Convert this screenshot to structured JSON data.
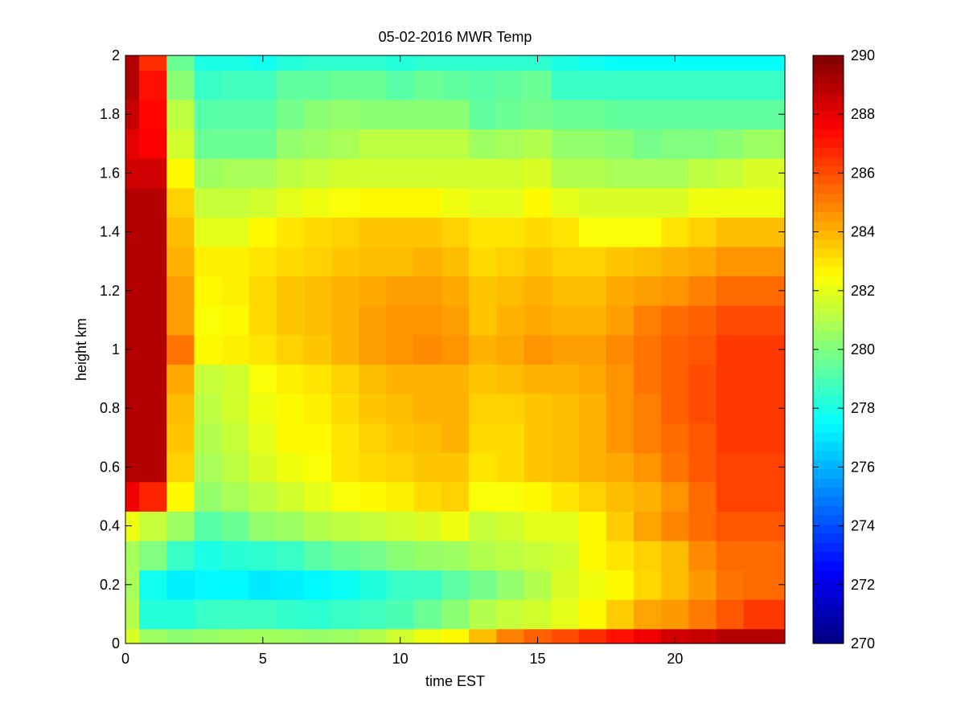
{
  "chart_data": {
    "type": "heatmap",
    "title": "05-02-2016 MWR Temp",
    "xlabel": "time EST",
    "ylabel": "height km",
    "xlim": [
      0,
      24
    ],
    "ylim": [
      0,
      2
    ],
    "x_ticks": [
      0,
      5,
      10,
      15,
      20
    ],
    "y_ticks": [
      0,
      0.2,
      0.4,
      0.6,
      0.8,
      1,
      1.2,
      1.4,
      1.6,
      1.8,
      2
    ],
    "colormap": "jet",
    "colorbar": {
      "clim": [
        270,
        290
      ],
      "ticks": [
        270,
        272,
        274,
        276,
        278,
        280,
        282,
        284,
        286,
        288,
        290
      ]
    },
    "times": [
      0,
      1,
      2,
      3,
      4,
      5,
      6,
      7,
      8,
      9,
      10,
      11,
      12,
      13,
      14,
      15,
      16,
      17,
      18,
      19,
      20,
      21,
      22,
      23,
      24
    ],
    "heights": [
      0,
      0.1,
      0.2,
      0.3,
      0.4,
      0.5,
      0.6,
      0.7,
      0.8,
      0.9,
      1.0,
      1.1,
      1.2,
      1.3,
      1.4,
      1.5,
      1.6,
      1.7,
      1.8,
      1.9,
      2.0
    ],
    "values": [
      [
        281.8,
        280.6,
        280.3,
        280.5,
        280.6,
        280.7,
        280.6,
        280.5,
        280.6,
        281.0,
        281.6,
        282.2,
        282.6,
        283.8,
        285.0,
        285.6,
        286.0,
        286.6,
        287.2,
        287.8,
        288.4,
        288.6,
        289.0,
        289.0,
        289.0
      ],
      [
        281.0,
        278.2,
        278.2,
        278.6,
        278.7,
        278.7,
        278.5,
        278.4,
        278.6,
        278.8,
        279.0,
        279.6,
        280.2,
        281.0,
        281.4,
        281.6,
        282.0,
        282.6,
        283.5,
        284.3,
        284.5,
        285.1,
        285.8,
        286.4,
        286.4
      ],
      [
        280.8,
        277.8,
        277.2,
        277.4,
        277.4,
        277.1,
        277.2,
        277.4,
        277.7,
        278.1,
        278.6,
        278.7,
        279.3,
        279.8,
        280.4,
        281.0,
        281.8,
        282.2,
        282.6,
        283.3,
        283.8,
        284.5,
        285.2,
        285.4,
        285.4
      ],
      [
        280.8,
        280.0,
        278.6,
        278.0,
        278.3,
        278.4,
        278.6,
        279.2,
        279.6,
        279.8,
        280.2,
        280.5,
        280.6,
        281.0,
        281.2,
        281.4,
        281.6,
        282.6,
        283.0,
        283.4,
        283.8,
        284.8,
        285.4,
        285.4,
        285.4
      ],
      [
        282.2,
        281.4,
        280.6,
        279.2,
        279.6,
        280.4,
        280.6,
        281.0,
        281.2,
        281.4,
        281.6,
        281.8,
        282.2,
        281.4,
        281.6,
        282.0,
        282.0,
        282.6,
        283.5,
        284.3,
        284.9,
        285.4,
        285.8,
        285.8,
        285.8
      ],
      [
        287.8,
        286.8,
        282.6,
        280.4,
        280.8,
        281.2,
        281.6,
        282.0,
        282.4,
        282.6,
        282.8,
        283.2,
        283.4,
        282.4,
        282.4,
        282.6,
        283.0,
        283.4,
        283.8,
        284.0,
        284.6,
        285.4,
        286.2,
        286.2,
        286.2
      ],
      [
        289.0,
        289.0,
        283.4,
        280.8,
        281.2,
        281.8,
        282.2,
        282.4,
        283.0,
        283.2,
        283.4,
        283.6,
        283.6,
        283.0,
        283.2,
        283.6,
        283.8,
        284.0,
        284.2,
        284.6,
        285.2,
        285.8,
        286.2,
        286.2,
        286.2
      ],
      [
        289.0,
        289.0,
        283.6,
        281.0,
        281.4,
        282.0,
        282.6,
        282.6,
        283.0,
        283.4,
        283.6,
        283.8,
        284.0,
        283.2,
        283.2,
        283.6,
        283.8,
        284.0,
        284.6,
        285.0,
        285.4,
        285.8,
        286.4,
        286.4,
        286.4
      ],
      [
        289.0,
        289.0,
        283.8,
        281.2,
        281.6,
        282.2,
        282.6,
        282.8,
        283.2,
        283.6,
        283.8,
        284.0,
        284.0,
        283.4,
        283.4,
        283.6,
        283.8,
        284.0,
        284.6,
        285.0,
        285.6,
        286.0,
        286.4,
        286.4,
        286.4
      ],
      [
        289.0,
        289.0,
        284.2,
        281.4,
        281.6,
        282.4,
        282.8,
        283.0,
        283.4,
        283.8,
        284.0,
        284.0,
        284.0,
        283.6,
        283.8,
        284.0,
        284.0,
        284.2,
        284.6,
        285.2,
        285.6,
        286.0,
        286.4,
        286.4,
        286.4
      ],
      [
        289.0,
        289.0,
        285.2,
        282.6,
        282.8,
        283.0,
        283.4,
        283.6,
        284.0,
        284.4,
        284.6,
        284.8,
        284.6,
        284.0,
        284.2,
        284.6,
        284.4,
        284.4,
        284.8,
        285.2,
        285.6,
        285.8,
        286.4,
        286.4,
        286.4
      ],
      [
        289.0,
        289.0,
        284.4,
        282.4,
        282.6,
        283.2,
        283.6,
        283.8,
        284.0,
        284.4,
        284.6,
        284.6,
        284.4,
        283.6,
        284.0,
        284.2,
        284.0,
        284.0,
        284.4,
        285.0,
        285.4,
        285.6,
        286.0,
        286.0,
        286.0
      ],
      [
        289.0,
        289.0,
        284.4,
        282.6,
        282.8,
        283.2,
        283.6,
        283.8,
        284.0,
        284.2,
        284.4,
        284.4,
        284.2,
        283.6,
        283.8,
        284.0,
        283.8,
        283.8,
        284.2,
        284.4,
        284.6,
        285.0,
        285.4,
        285.4,
        285.4
      ],
      [
        289.0,
        289.0,
        284.0,
        282.8,
        282.8,
        283.0,
        283.2,
        283.4,
        283.6,
        283.8,
        283.8,
        284.0,
        283.8,
        283.2,
        283.4,
        283.6,
        283.4,
        283.4,
        283.6,
        283.8,
        284.0,
        284.2,
        284.6,
        284.6,
        284.6
      ],
      [
        289.0,
        289.0,
        283.8,
        282.0,
        282.0,
        282.6,
        283.0,
        283.2,
        283.4,
        283.6,
        283.6,
        283.6,
        283.4,
        283.0,
        283.0,
        283.2,
        283.0,
        282.4,
        282.4,
        282.4,
        283.0,
        283.4,
        283.8,
        283.8,
        283.8
      ],
      [
        289.0,
        289.0,
        283.4,
        281.4,
        281.4,
        281.6,
        282.0,
        282.2,
        282.4,
        282.6,
        282.6,
        282.6,
        282.2,
        282.0,
        282.0,
        282.6,
        282.0,
        281.8,
        281.8,
        281.8,
        281.8,
        282.2,
        282.2,
        282.2,
        282.2
      ],
      [
        288.4,
        288.4,
        282.6,
        280.6,
        280.8,
        280.8,
        281.2,
        281.4,
        281.6,
        281.6,
        281.6,
        281.6,
        281.6,
        281.6,
        281.6,
        281.8,
        281.0,
        281.0,
        280.8,
        280.8,
        280.8,
        281.2,
        281.4,
        281.8,
        281.8
      ],
      [
        288.0,
        287.6,
        281.6,
        279.6,
        279.6,
        279.6,
        280.4,
        280.6,
        280.8,
        281.2,
        281.2,
        281.2,
        281.2,
        280.6,
        280.8,
        281.0,
        280.4,
        280.4,
        280.2,
        279.8,
        280.0,
        280.0,
        280.2,
        280.6,
        280.6
      ],
      [
        288.6,
        287.4,
        281.2,
        279.2,
        279.2,
        279.2,
        279.8,
        280.2,
        280.4,
        280.2,
        280.2,
        280.2,
        280.2,
        279.4,
        279.6,
        279.8,
        279.6,
        279.6,
        279.4,
        279.4,
        279.4,
        279.4,
        279.4,
        279.4,
        279.4
      ],
      [
        289.0,
        287.2,
        280.2,
        278.6,
        278.8,
        278.8,
        279.4,
        279.4,
        279.6,
        279.6,
        279.2,
        279.6,
        279.4,
        279.2,
        279.4,
        279.6,
        278.6,
        278.6,
        278.6,
        278.6,
        278.6,
        278.6,
        278.6,
        278.6,
        278.6
      ],
      [
        289.0,
        286.6,
        279.6,
        278.0,
        278.0,
        277.8,
        278.2,
        278.4,
        278.4,
        278.4,
        278.2,
        278.4,
        278.4,
        278.4,
        278.4,
        278.4,
        278.0,
        277.8,
        277.6,
        277.6,
        277.6,
        277.6,
        277.6,
        277.6,
        277.6
      ]
    ]
  }
}
